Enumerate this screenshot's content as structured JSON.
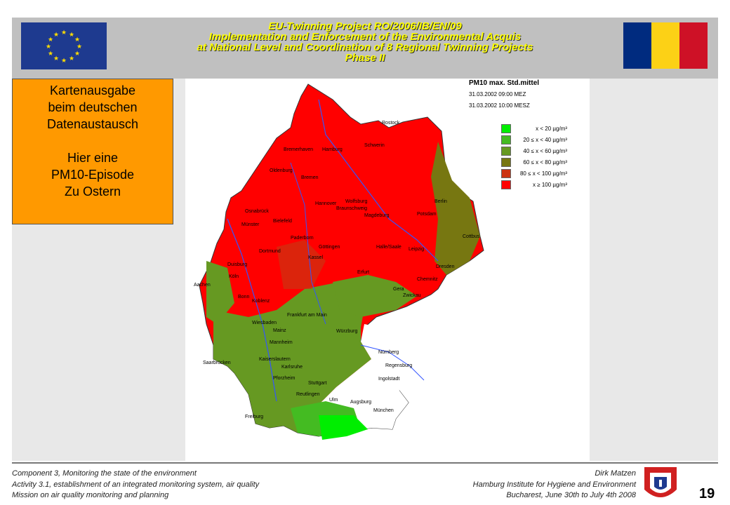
{
  "header": {
    "title_lines": [
      "EU-Twinning Project RO/2006/IB/EN/09",
      "Implementation and Enforcement of the Environmental Acquis",
      "at National Level and Coordination of 8 Regional Twinning Projects",
      "Phase II"
    ],
    "eu_flag_icon": "eu-flag-icon",
    "ro_flag_colors": [
      "#002b7f",
      "#fcd116",
      "#ce1126"
    ]
  },
  "callout": {
    "lines": [
      "Kartenausgabe",
      "beim deutschen",
      "Datenaustausch",
      "",
      "Hier eine",
      "PM10-Episode",
      "Zu Ostern"
    ],
    "color": "#ff9900"
  },
  "map": {
    "legend_title": "PM10 max. Std.mittel",
    "date1": "31.03.2002 09:00 MEZ",
    "date2": "31.03.2002 10:00 MESZ",
    "legend": [
      {
        "label": "x <  20 µg/m³",
        "color": "#00ee00"
      },
      {
        "label": "20 ≤ x <  40 µg/m³",
        "color": "#44bb22"
      },
      {
        "label": "40 ≤ x <  60 µg/m³",
        "color": "#669922"
      },
      {
        "label": "60 ≤ x <  80 µg/m³",
        "color": "#777711"
      },
      {
        "label": "80 ≤ x < 100 µg/m³",
        "color": "#cc3311"
      },
      {
        "label": "x ≥ 100 µg/m³",
        "color": "#ff0000"
      }
    ],
    "cities": [
      "Rostock",
      "Bremerhaven",
      "Hamburg",
      "Schwerin",
      "Oldenburg",
      "Bremen",
      "Berlin",
      "Hannover",
      "Braunschweig",
      "Wolfsburg",
      "Potsdam",
      "Osnabrück",
      "Bielefeld",
      "Magdeburg",
      "Münster",
      "Cottbus",
      "Paderborn",
      "Göttingen",
      "Halle/Saale",
      "Leipzig",
      "Dortmund",
      "Kassel",
      "Duisburg",
      "Dresden",
      "Aachen",
      "Köln",
      "Erfurt",
      "Gera",
      "Chemnitz",
      "Bonn",
      "Koblenz",
      "Zwickau",
      "Frankfurt am Main",
      "Wiesbaden",
      "Mainz",
      "Würzburg",
      "Mannheim",
      "Nürnberg",
      "Kaiserslautern",
      "Saarbrücken",
      "Karlsruhe",
      "Regensburg",
      "Pforzheim",
      "Stuttgart",
      "Ingolstadt",
      "Reutlingen",
      "Ulm",
      "Augsburg",
      "München",
      "Freiburg"
    ]
  },
  "footer": {
    "left": [
      "Component  3, Monitoring  the state of the environment",
      "Activity 3.1, establishment of an integrated monitoring  system, air quality",
      "Mission on air quality monitoring and planning"
    ],
    "right": [
      "Dirk Matzen",
      "Hamburg  Institute for Hygiene  and Environment",
      "Bucharest,  June 30th  to July 4th  2008"
    ],
    "page_number": "19"
  }
}
